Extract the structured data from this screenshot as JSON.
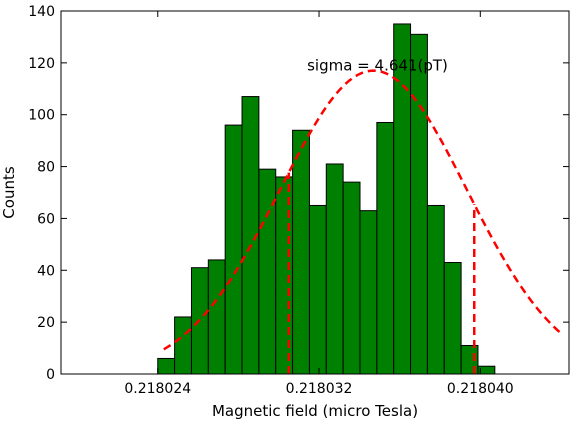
{
  "chart_data": {
    "type": "bar",
    "bar_color": "#008000",
    "fit_color": "#ff0000",
    "xlabel": "Magnetic field (micro Tesla)",
    "ylabel": "Counts",
    "xlim": [
      0.2180192,
      0.2180444
    ],
    "ylim": [
      0,
      140
    ],
    "xticks": [
      {
        "value": 0.218024,
        "label": "0.218024"
      },
      {
        "value": 0.218032,
        "label": "0.218032"
      },
      {
        "value": 0.21804,
        "label": "0.218040"
      }
    ],
    "yticks": [
      {
        "value": 0,
        "label": "0"
      },
      {
        "value": 20,
        "label": "20"
      },
      {
        "value": 40,
        "label": "40"
      },
      {
        "value": 60,
        "label": "60"
      },
      {
        "value": 80,
        "label": "80"
      },
      {
        "value": 100,
        "label": "100"
      },
      {
        "value": 120,
        "label": "120"
      },
      {
        "value": 140,
        "label": "140"
      }
    ],
    "bin_start": 0.218024,
    "bin_width": 8.36e-07,
    "counts": [
      6,
      22,
      41,
      44,
      96,
      107,
      79,
      76,
      94,
      65,
      81,
      74,
      63,
      97,
      135,
      131,
      65,
      43,
      11,
      3
    ],
    "fit": {
      "mean": 0.2180347,
      "sigma": 4.641e-06,
      "peak": 117,
      "x_range": [
        0.2180243,
        0.218044
      ],
      "vlines": [
        0.2180305,
        0.2180397
      ]
    },
    "annotation": {
      "text": "sigma = 4.641(pT)",
      "x": 0.2180349,
      "y": 119
    }
  }
}
